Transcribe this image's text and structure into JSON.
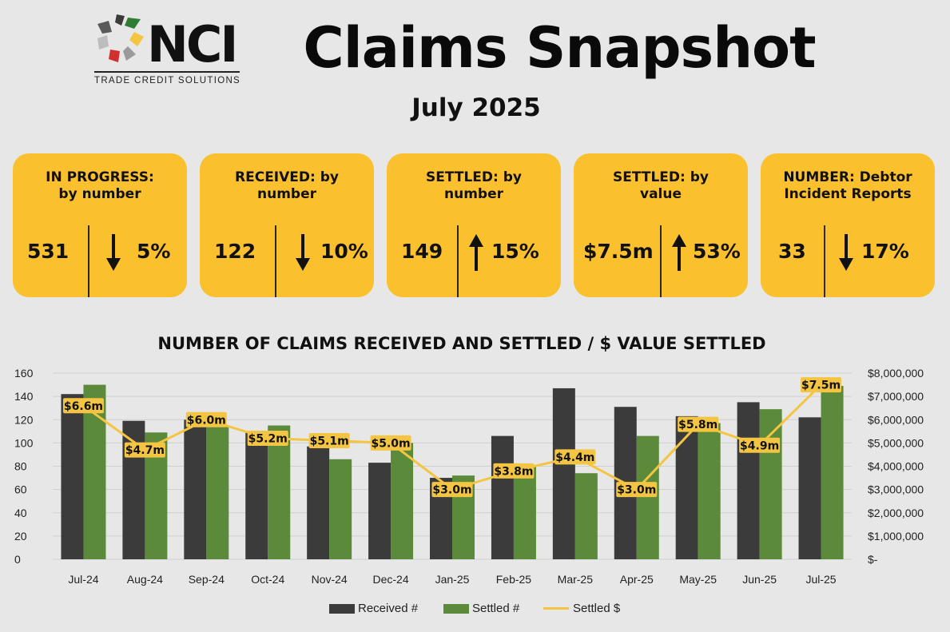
{
  "brand": {
    "name": "NCI",
    "tagline": "TRADE CREDIT SOLUTIONS"
  },
  "header": {
    "title": "Claims Snapshot",
    "subtitle": "July 2025"
  },
  "kpis": [
    {
      "label": "IN PROGRESS:\nby number",
      "value": "531",
      "direction": "down",
      "change": "5%"
    },
    {
      "label": "RECEIVED: by\nnumber",
      "value": "122",
      "direction": "down",
      "change": "10%"
    },
    {
      "label": "SETTLED: by\nnumber",
      "value": "149",
      "direction": "up",
      "change": "15%"
    },
    {
      "label": "SETTLED: by\nvalue",
      "value": "$7.5m",
      "direction": "up",
      "change": "53%"
    },
    {
      "label": "NUMBER: Debtor\nIncident Reports",
      "value": "33",
      "direction": "down",
      "change": "17%"
    }
  ],
  "colors": {
    "background": "#e7e7e7",
    "card": "#fbc02d",
    "received": "#3b3b3b",
    "settled": "#5a8a3a",
    "settled_value": "#f4c542"
  },
  "chart_data": {
    "type": "bar",
    "title": "NUMBER OF CLAIMS RECEIVED AND SETTLED / $ VALUE SETTLED",
    "categories": [
      "Jul-24",
      "Aug-24",
      "Sep-24",
      "Oct-24",
      "Nov-24",
      "Dec-24",
      "Jan-25",
      "Feb-25",
      "Mar-25",
      "Apr-25",
      "May-25",
      "Jun-25",
      "Jul-25"
    ],
    "series": [
      {
        "name": "Received #",
        "type": "bar",
        "axis": "left",
        "values": [
          142,
          119,
          120,
          110,
          97,
          83,
          70,
          106,
          147,
          131,
          123,
          135,
          122
        ]
      },
      {
        "name": "Settled #",
        "type": "bar",
        "axis": "left",
        "values": [
          150,
          109,
          115,
          115,
          86,
          100,
          72,
          80,
          74,
          106,
          117,
          129,
          149
        ]
      },
      {
        "name": "Settled $",
        "type": "line",
        "axis": "right",
        "values": [
          6600000,
          4700000,
          6000000,
          5200000,
          5100000,
          5000000,
          3000000,
          3800000,
          4400000,
          3000000,
          5800000,
          4900000,
          7500000
        ],
        "labels": [
          "$6.6m",
          "$4.7m",
          "$6.0m",
          "$5.2m",
          "$5.1m",
          "$5.0m",
          "$3.0m",
          "$3.8m",
          "$4.4m",
          "$3.0m",
          "$5.8m",
          "$4.9m",
          "$7.5m"
        ]
      }
    ],
    "ylim": [
      0,
      160
    ],
    "y_ticks": [
      "0",
      "20",
      "40",
      "60",
      "80",
      "100",
      "120",
      "140",
      "160"
    ],
    "y2lim": [
      0,
      8000000
    ],
    "y2_ticks": [
      "$-",
      "$1,000,000",
      "$2,000,000",
      "$3,000,000",
      "$4,000,000",
      "$5,000,000",
      "$6,000,000",
      "$7,000,000",
      "$8,000,000"
    ],
    "grid": true,
    "legend": "bottom"
  }
}
